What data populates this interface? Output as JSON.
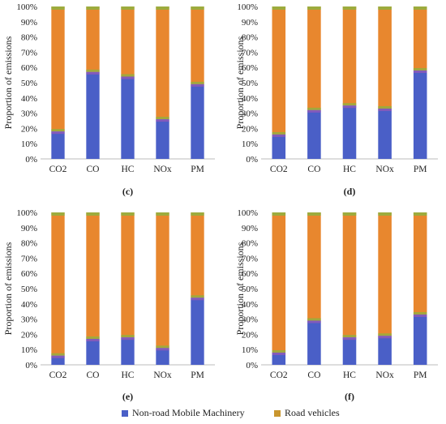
{
  "chart_data": [
    {
      "type": "bar",
      "panel_label": "(c)",
      "ylabel": "Proportion of emissions",
      "categories": [
        "CO2",
        "CO",
        "HC",
        "NOx",
        "PM"
      ],
      "y_ticks": [
        "0%",
        "10%",
        "20%",
        "30%",
        "40%",
        "50%",
        "60%",
        "70%",
        "80%",
        "90%",
        "100%"
      ],
      "series": [
        {
          "name": "Non-road Mobile Machinery",
          "values": [
            18,
            57,
            54,
            26,
            49
          ]
        },
        {
          "name": "Road vehicles",
          "values": [
            82,
            43,
            46,
            74,
            51
          ]
        }
      ],
      "ylim": [
        0,
        100
      ],
      "stacked": true
    },
    {
      "type": "bar",
      "panel_label": "(d)",
      "ylabel": "Proportion of emissions",
      "categories": [
        "CO2",
        "CO",
        "HC",
        "NOx",
        "PM"
      ],
      "y_ticks": [
        "0%",
        "10%",
        "20%",
        "30%",
        "40%",
        "50%",
        "60%",
        "70%",
        "80%",
        "90%",
        "100%"
      ],
      "series": [
        {
          "name": "Non-road Mobile Machinery",
          "values": [
            16,
            32,
            35,
            33,
            58
          ]
        },
        {
          "name": "Road vehicles",
          "values": [
            84,
            68,
            65,
            67,
            42
          ]
        }
      ],
      "ylim": [
        0,
        100
      ],
      "stacked": true
    },
    {
      "type": "bar",
      "panel_label": "(e)",
      "ylabel": "Proportion of emissions",
      "categories": [
        "CO2",
        "CO",
        "HC",
        "NOx",
        "PM"
      ],
      "y_ticks": [
        "0%",
        "10%",
        "20%",
        "30%",
        "40%",
        "50%",
        "60%",
        "70%",
        "80%",
        "90%",
        "100%"
      ],
      "series": [
        {
          "name": "Non-road Mobile Machinery",
          "values": [
            6,
            17,
            18,
            11,
            44
          ]
        },
        {
          "name": "Road vehicles",
          "values": [
            94,
            83,
            82,
            89,
            56
          ]
        }
      ],
      "ylim": [
        0,
        100
      ],
      "stacked": true
    },
    {
      "type": "bar",
      "panel_label": "(f)",
      "ylabel": "Proportion of emissions",
      "categories": [
        "CO2",
        "CO",
        "HC",
        "NOx",
        "PM"
      ],
      "y_ticks": [
        "0%",
        "10%",
        "20%",
        "30%",
        "40%",
        "50%",
        "60%",
        "70%",
        "80%",
        "90%",
        "100%"
      ],
      "series": [
        {
          "name": "Non-road Mobile Machinery",
          "values": [
            8,
            29,
            18,
            19,
            33
          ]
        },
        {
          "name": "Road vehicles",
          "values": [
            92,
            71,
            82,
            81,
            67
          ]
        }
      ],
      "ylim": [
        0,
        100
      ],
      "stacked": true
    }
  ],
  "legend": {
    "items": [
      {
        "label": "Non-road Mobile Machinery",
        "color": "#4a5fc7"
      },
      {
        "label": "Road vehicles",
        "color": "#e8872e"
      }
    ]
  },
  "colors": {
    "nrmm": "#4a5fc7",
    "road": "#e8872e",
    "accent": "#8fb240",
    "tint": "#9b59b6"
  }
}
